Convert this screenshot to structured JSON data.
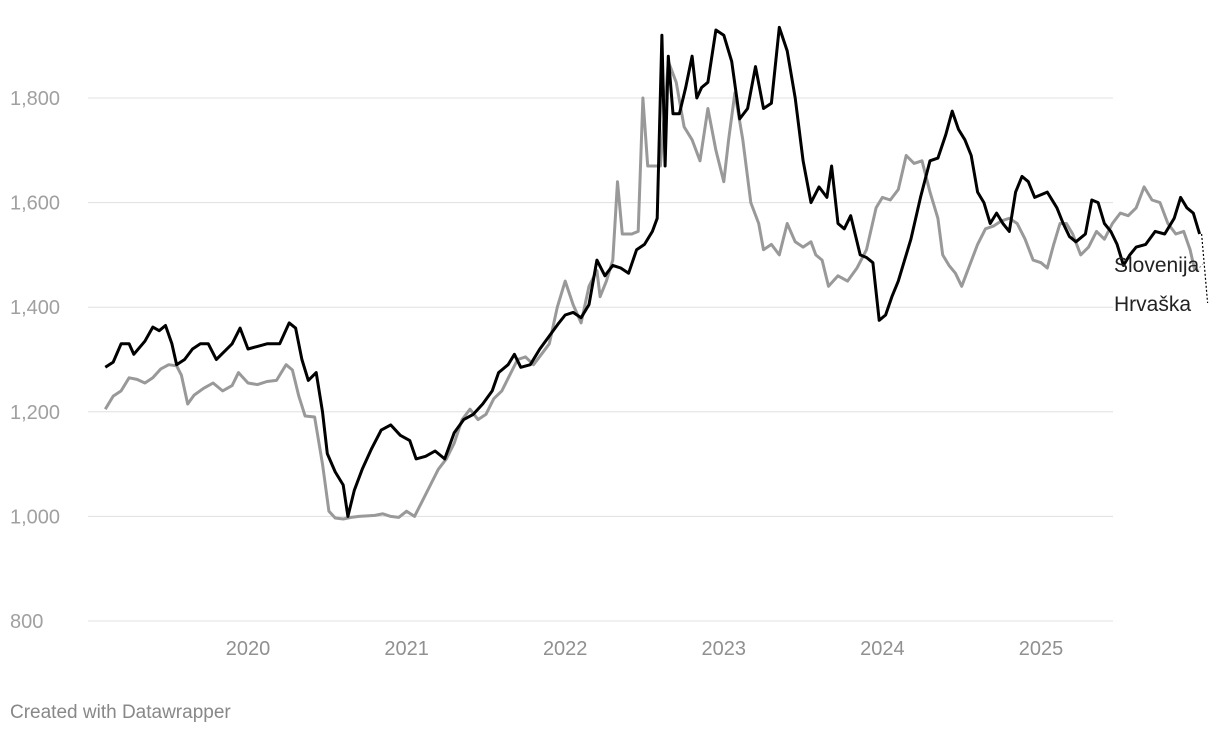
{
  "chart_data": {
    "type": "line",
    "title": "",
    "xlabel": "",
    "ylabel": "",
    "xlim": [
      2019.05,
      2025.6
    ],
    "ylim": [
      800,
      1950
    ],
    "yticks": [
      800,
      1000,
      1200,
      1400,
      1600,
      1800
    ],
    "ytick_labels": [
      "800",
      "1,000",
      "1,200",
      "1,400",
      "1,600",
      "1,800"
    ],
    "xticks": [
      2020,
      2021,
      2022,
      2023,
      2024,
      2025
    ],
    "xtick_labels": [
      "2020",
      "2021",
      "2022",
      "2023",
      "2024",
      "2025"
    ],
    "grid": true,
    "legend": "direct labels at line ends",
    "series": [
      {
        "name": "Slovenija",
        "color": "#999999",
        "points": [
          [
            2019.1,
            1205
          ],
          [
            2019.15,
            1230
          ],
          [
            2019.2,
            1240
          ],
          [
            2019.25,
            1265
          ],
          [
            2019.3,
            1262
          ],
          [
            2019.35,
            1255
          ],
          [
            2019.4,
            1265
          ],
          [
            2019.45,
            1282
          ],
          [
            2019.5,
            1290
          ],
          [
            2019.55,
            1288
          ],
          [
            2019.58,
            1270
          ],
          [
            2019.62,
            1215
          ],
          [
            2019.66,
            1232
          ],
          [
            2019.72,
            1245
          ],
          [
            2019.78,
            1255
          ],
          [
            2019.84,
            1240
          ],
          [
            2019.9,
            1250
          ],
          [
            2019.94,
            1275
          ],
          [
            2020.0,
            1255
          ],
          [
            2020.06,
            1252
          ],
          [
            2020.12,
            1258
          ],
          [
            2020.18,
            1260
          ],
          [
            2020.24,
            1290
          ],
          [
            2020.28,
            1280
          ],
          [
            2020.32,
            1230
          ],
          [
            2020.36,
            1192
          ],
          [
            2020.42,
            1190
          ],
          [
            2020.47,
            1100
          ],
          [
            2020.51,
            1010
          ],
          [
            2020.55,
            997
          ],
          [
            2020.6,
            995
          ],
          [
            2020.65,
            998
          ],
          [
            2020.7,
            1000
          ],
          [
            2020.8,
            1002
          ],
          [
            2020.85,
            1005
          ],
          [
            2020.9,
            1000
          ],
          [
            2020.95,
            998
          ],
          [
            2021.0,
            1010
          ],
          [
            2021.05,
            1000
          ],
          [
            2021.1,
            1030
          ],
          [
            2021.15,
            1060
          ],
          [
            2021.2,
            1090
          ],
          [
            2021.25,
            1110
          ],
          [
            2021.3,
            1140
          ],
          [
            2021.35,
            1185
          ],
          [
            2021.4,
            1205
          ],
          [
            2021.45,
            1185
          ],
          [
            2021.5,
            1195
          ],
          [
            2021.55,
            1225
          ],
          [
            2021.6,
            1240
          ],
          [
            2021.65,
            1270
          ],
          [
            2021.7,
            1300
          ],
          [
            2021.75,
            1305
          ],
          [
            2021.8,
            1290
          ],
          [
            2021.85,
            1310
          ],
          [
            2021.9,
            1330
          ],
          [
            2021.95,
            1400
          ],
          [
            2022.0,
            1450
          ],
          [
            2022.05,
            1405
          ],
          [
            2022.1,
            1370
          ],
          [
            2022.15,
            1440
          ],
          [
            2022.2,
            1470
          ],
          [
            2022.22,
            1420
          ],
          [
            2022.26,
            1450
          ],
          [
            2022.3,
            1490
          ],
          [
            2022.33,
            1640
          ],
          [
            2022.36,
            1540
          ],
          [
            2022.42,
            1540
          ],
          [
            2022.46,
            1545
          ],
          [
            2022.49,
            1800
          ],
          [
            2022.52,
            1670
          ],
          [
            2022.6,
            1670
          ],
          [
            2022.65,
            1870
          ],
          [
            2022.7,
            1830
          ],
          [
            2022.75,
            1745
          ],
          [
            2022.8,
            1720
          ],
          [
            2022.85,
            1680
          ],
          [
            2022.9,
            1780
          ],
          [
            2022.95,
            1700
          ],
          [
            2023.0,
            1640
          ],
          [
            2023.03,
            1720
          ],
          [
            2023.07,
            1810
          ],
          [
            2023.12,
            1720
          ],
          [
            2023.17,
            1600
          ],
          [
            2023.22,
            1560
          ],
          [
            2023.25,
            1510
          ],
          [
            2023.3,
            1520
          ],
          [
            2023.35,
            1500
          ],
          [
            2023.4,
            1560
          ],
          [
            2023.45,
            1525
          ],
          [
            2023.5,
            1515
          ],
          [
            2023.55,
            1525
          ],
          [
            2023.58,
            1500
          ],
          [
            2023.62,
            1490
          ],
          [
            2023.66,
            1440
          ],
          [
            2023.72,
            1460
          ],
          [
            2023.78,
            1450
          ],
          [
            2023.84,
            1475
          ],
          [
            2023.9,
            1510
          ],
          [
            2023.96,
            1590
          ],
          [
            2024.0,
            1610
          ],
          [
            2024.05,
            1605
          ],
          [
            2024.1,
            1625
          ],
          [
            2024.15,
            1690
          ],
          [
            2024.2,
            1675
          ],
          [
            2024.25,
            1680
          ],
          [
            2024.3,
            1620
          ],
          [
            2024.35,
            1570
          ],
          [
            2024.38,
            1500
          ],
          [
            2024.42,
            1480
          ],
          [
            2024.46,
            1465
          ],
          [
            2024.5,
            1440
          ],
          [
            2024.55,
            1480
          ],
          [
            2024.6,
            1520
          ],
          [
            2024.65,
            1550
          ],
          [
            2024.7,
            1555
          ],
          [
            2024.75,
            1565
          ],
          [
            2024.8,
            1570
          ],
          [
            2024.85,
            1560
          ],
          [
            2024.9,
            1530
          ],
          [
            2024.95,
            1490
          ],
          [
            2025.0,
            1485
          ],
          [
            2025.04,
            1475
          ],
          [
            2025.08,
            1520
          ],
          [
            2025.12,
            1560
          ],
          [
            2025.16,
            1560
          ],
          [
            2025.2,
            1540
          ],
          [
            2025.25,
            1500
          ],
          [
            2025.3,
            1515
          ],
          [
            2025.35,
            1545
          ],
          [
            2025.4,
            1530
          ],
          [
            2025.45,
            1560
          ],
          [
            2025.5,
            1580
          ],
          [
            2025.55,
            1575
          ],
          [
            2025.6,
            1590
          ],
          [
            2025.65,
            1630
          ],
          [
            2025.7,
            1605
          ],
          [
            2025.75,
            1600
          ],
          [
            2025.8,
            1560
          ],
          [
            2025.85,
            1540
          ],
          [
            2025.9,
            1545
          ],
          [
            2025.94,
            1510
          ],
          [
            2025.97,
            1470
          ]
        ]
      },
      {
        "name": "Hrvaška",
        "color": "#000000",
        "points": [
          [
            2019.1,
            1285
          ],
          [
            2019.15,
            1295
          ],
          [
            2019.2,
            1330
          ],
          [
            2019.25,
            1330
          ],
          [
            2019.28,
            1310
          ],
          [
            2019.35,
            1335
          ],
          [
            2019.4,
            1362
          ],
          [
            2019.44,
            1355
          ],
          [
            2019.48,
            1365
          ],
          [
            2019.52,
            1330
          ],
          [
            2019.55,
            1290
          ],
          [
            2019.6,
            1300
          ],
          [
            2019.65,
            1320
          ],
          [
            2019.7,
            1330
          ],
          [
            2019.75,
            1330
          ],
          [
            2019.8,
            1300
          ],
          [
            2019.85,
            1315
          ],
          [
            2019.9,
            1330
          ],
          [
            2019.95,
            1360
          ],
          [
            2020.0,
            1320
          ],
          [
            2020.06,
            1325
          ],
          [
            2020.12,
            1330
          ],
          [
            2020.2,
            1330
          ],
          [
            2020.26,
            1370
          ],
          [
            2020.3,
            1360
          ],
          [
            2020.34,
            1300
          ],
          [
            2020.38,
            1260
          ],
          [
            2020.43,
            1275
          ],
          [
            2020.47,
            1200
          ],
          [
            2020.5,
            1120
          ],
          [
            2020.55,
            1085
          ],
          [
            2020.6,
            1060
          ],
          [
            2020.63,
            1000
          ],
          [
            2020.67,
            1050
          ],
          [
            2020.72,
            1090
          ],
          [
            2020.78,
            1130
          ],
          [
            2020.84,
            1165
          ],
          [
            2020.9,
            1175
          ],
          [
            2020.96,
            1155
          ],
          [
            2021.02,
            1145
          ],
          [
            2021.06,
            1110
          ],
          [
            2021.12,
            1115
          ],
          [
            2021.18,
            1125
          ],
          [
            2021.24,
            1110
          ],
          [
            2021.3,
            1160
          ],
          [
            2021.36,
            1185
          ],
          [
            2021.42,
            1195
          ],
          [
            2021.48,
            1215
          ],
          [
            2021.54,
            1240
          ],
          [
            2021.58,
            1275
          ],
          [
            2021.64,
            1290
          ],
          [
            2021.68,
            1310
          ],
          [
            2021.72,
            1285
          ],
          [
            2021.78,
            1290
          ],
          [
            2021.84,
            1320
          ],
          [
            2021.9,
            1345
          ],
          [
            2021.96,
            1370
          ],
          [
            2022.0,
            1385
          ],
          [
            2022.05,
            1390
          ],
          [
            2022.1,
            1380
          ],
          [
            2022.15,
            1405
          ],
          [
            2022.2,
            1490
          ],
          [
            2022.25,
            1460
          ],
          [
            2022.3,
            1480
          ],
          [
            2022.35,
            1475
          ],
          [
            2022.4,
            1465
          ],
          [
            2022.45,
            1510
          ],
          [
            2022.5,
            1520
          ],
          [
            2022.55,
            1545
          ],
          [
            2022.58,
            1570
          ],
          [
            2022.61,
            1920
          ],
          [
            2022.63,
            1670
          ],
          [
            2022.65,
            1880
          ],
          [
            2022.68,
            1770
          ],
          [
            2022.72,
            1770
          ],
          [
            2022.76,
            1820
          ],
          [
            2022.8,
            1880
          ],
          [
            2022.83,
            1800
          ],
          [
            2022.86,
            1820
          ],
          [
            2022.9,
            1830
          ],
          [
            2022.95,
            1930
          ],
          [
            2023.0,
            1920
          ],
          [
            2023.05,
            1870
          ],
          [
            2023.1,
            1760
          ],
          [
            2023.15,
            1780
          ],
          [
            2023.2,
            1860
          ],
          [
            2023.25,
            1780
          ],
          [
            2023.3,
            1790
          ],
          [
            2023.35,
            1935
          ],
          [
            2023.4,
            1890
          ],
          [
            2023.45,
            1800
          ],
          [
            2023.5,
            1680
          ],
          [
            2023.55,
            1600
          ],
          [
            2023.6,
            1630
          ],
          [
            2023.65,
            1610
          ],
          [
            2023.68,
            1670
          ],
          [
            2023.72,
            1560
          ],
          [
            2023.76,
            1550
          ],
          [
            2023.8,
            1575
          ],
          [
            2023.86,
            1500
          ],
          [
            2023.9,
            1495
          ],
          [
            2023.94,
            1485
          ],
          [
            2023.98,
            1375
          ],
          [
            2024.02,
            1385
          ],
          [
            2024.06,
            1420
          ],
          [
            2024.1,
            1450
          ],
          [
            2024.14,
            1490
          ],
          [
            2024.18,
            1530
          ],
          [
            2024.24,
            1610
          ],
          [
            2024.3,
            1680
          ],
          [
            2024.35,
            1685
          ],
          [
            2024.4,
            1730
          ],
          [
            2024.44,
            1775
          ],
          [
            2024.48,
            1740
          ],
          [
            2024.52,
            1720
          ],
          [
            2024.56,
            1690
          ],
          [
            2024.6,
            1620
          ],
          [
            2024.64,
            1600
          ],
          [
            2024.68,
            1560
          ],
          [
            2024.72,
            1580
          ],
          [
            2024.76,
            1560
          ],
          [
            2024.8,
            1545
          ],
          [
            2024.84,
            1620
          ],
          [
            2024.88,
            1650
          ],
          [
            2024.92,
            1640
          ],
          [
            2024.96,
            1610
          ],
          [
            2025.0,
            1615
          ],
          [
            2025.04,
            1620
          ],
          [
            2025.1,
            1590
          ],
          [
            2025.14,
            1560
          ],
          [
            2025.18,
            1535
          ],
          [
            2025.22,
            1525
          ],
          [
            2025.28,
            1540
          ],
          [
            2025.32,
            1605
          ],
          [
            2025.36,
            1600
          ],
          [
            2025.4,
            1560
          ],
          [
            2025.44,
            1545
          ],
          [
            2025.48,
            1520
          ],
          [
            2025.52,
            1480
          ],
          [
            2025.56,
            1500
          ],
          [
            2025.6,
            1515
          ],
          [
            2025.66,
            1520
          ],
          [
            2025.72,
            1545
          ],
          [
            2025.78,
            1540
          ],
          [
            2025.84,
            1570
          ],
          [
            2025.88,
            1610
          ],
          [
            2025.92,
            1590
          ],
          [
            2025.96,
            1580
          ],
          [
            2026.0,
            1540
          ]
        ]
      }
    ]
  },
  "credit": "Created with Datawrapper"
}
